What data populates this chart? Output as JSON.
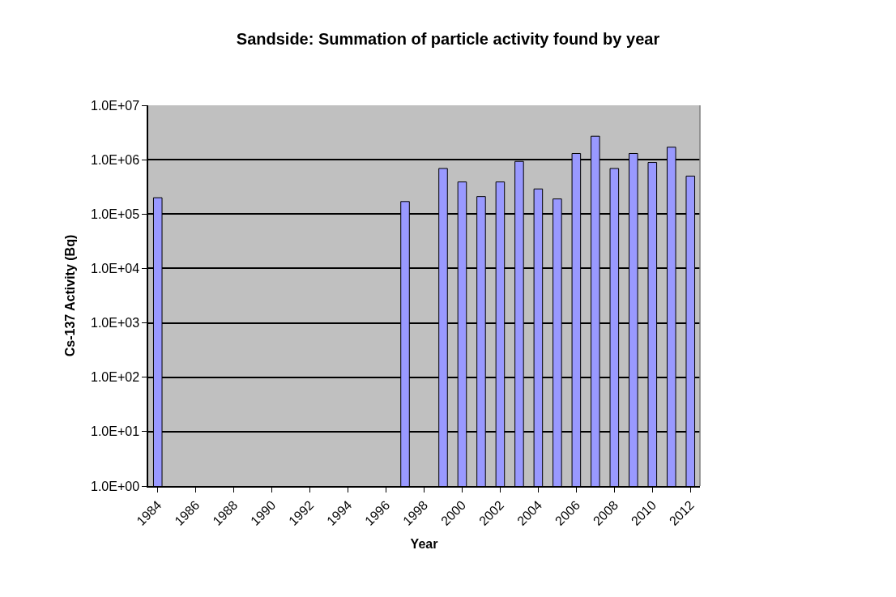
{
  "chart_data": {
    "type": "bar",
    "title": "Sandside: Summation of particle activity found by year",
    "xlabel": "Year",
    "ylabel": "Cs-137 Activity (Bq)",
    "categories": [
      "1984",
      null,
      "1986",
      null,
      "1988",
      null,
      "1990",
      null,
      "1992",
      null,
      "1994",
      null,
      "1996",
      null,
      "1998",
      null,
      "2000",
      null,
      "2002",
      null,
      "2004",
      null,
      "2006",
      null,
      "2008",
      null,
      "2010",
      null,
      "2012"
    ],
    "values": [
      200000,
      null,
      null,
      null,
      null,
      null,
      null,
      null,
      null,
      null,
      null,
      null,
      null,
      170000,
      null,
      690000,
      390000,
      210000,
      390000,
      930000,
      290000,
      190000,
      1300000,
      2700000,
      690000,
      1300000,
      890000,
      1700000,
      500000
    ],
    "color": "#9999ff",
    "log": "y",
    "grid": "y",
    "ylim": [
      1,
      10000000
    ],
    "yticks": [
      {
        "value": 1,
        "label": "1.0E+00"
      },
      {
        "value": 10,
        "label": "1.0E+01"
      },
      {
        "value": 100,
        "label": "1.0E+02"
      },
      {
        "value": 1000,
        "label": "1.0E+03"
      },
      {
        "value": 10000,
        "label": "1.0E+04"
      },
      {
        "value": 100000,
        "label": "1.0E+05"
      },
      {
        "value": 1000000,
        "label": "1.0E+06"
      },
      {
        "value": 10000000,
        "label": "1.0E+07"
      }
    ]
  }
}
